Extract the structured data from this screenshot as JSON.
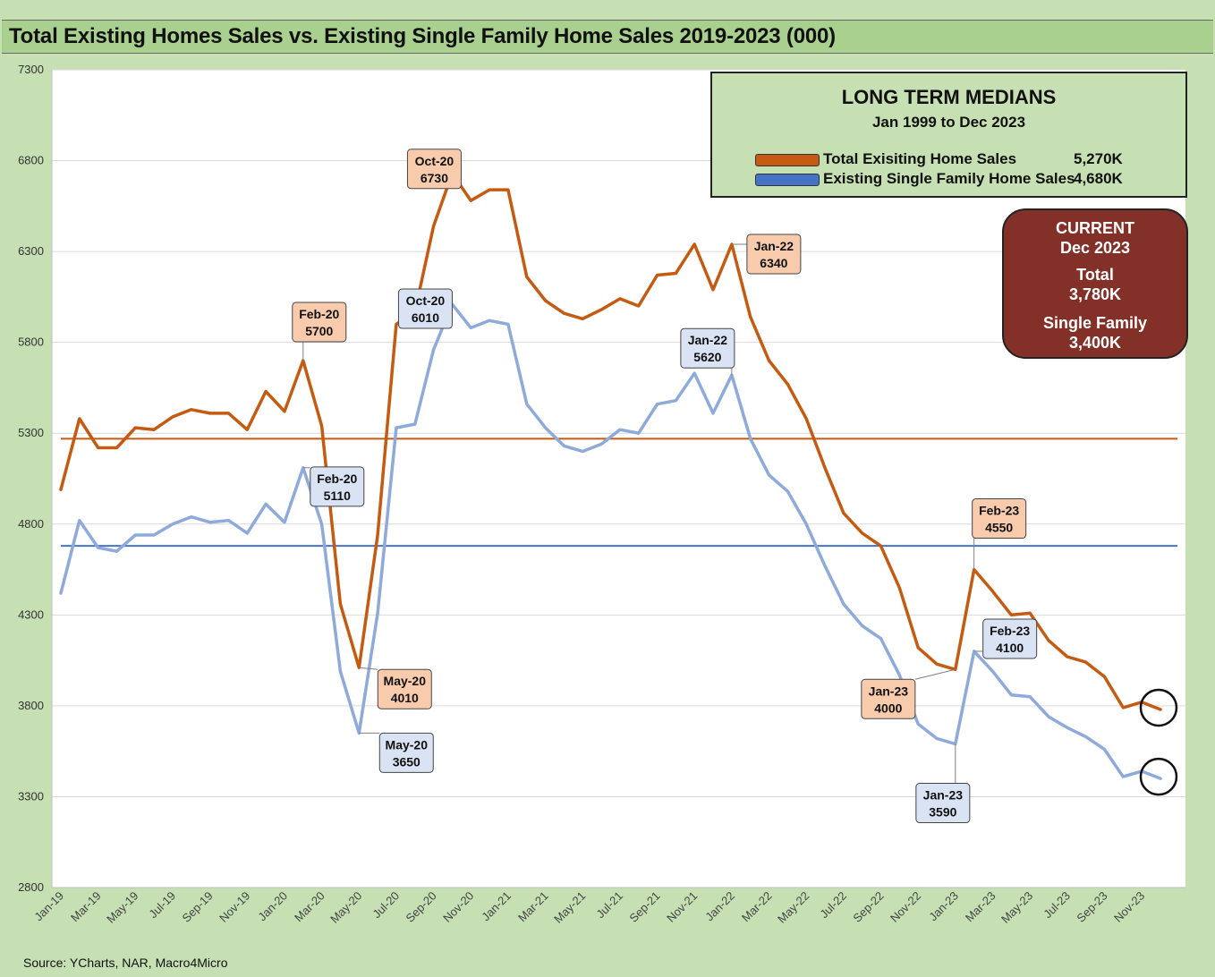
{
  "title": "Total Existing Homes Sales vs. Existing Single Family Home Sales 2019-2023 (000)",
  "source": "Source: YCharts, NAR, Macro4Micro",
  "medians_box": {
    "title": "LONG TERM MEDIANS",
    "subtitle": "Jan 1999 to Dec 2023",
    "rows": [
      {
        "label": "Total Exisiting Home Sales",
        "value": "5,270K",
        "color": "#c55a11"
      },
      {
        "label": "Existing Single Family Home Sales",
        "value": "4,680K",
        "color": "#4472c4"
      }
    ]
  },
  "current_box": {
    "heading1": "CURRENT",
    "heading2": "Dec 2023",
    "total_label": "Total",
    "total_value": "3,780K",
    "sf_label": "Single Family",
    "sf_value": "3,400K"
  },
  "colors": {
    "total_line": "#c55a11",
    "sf_line": "#8eaadb",
    "total_callout_fill": "#f8cbad",
    "sf_callout_fill": "#dae3f3",
    "median_total": "#c55a11",
    "median_sf": "#4472c4"
  },
  "chart_data": {
    "type": "line",
    "ylim": [
      2800,
      7300
    ],
    "yticks": [
      2800,
      3300,
      3800,
      4300,
      4800,
      5300,
      5800,
      6300,
      6800,
      7300
    ],
    "grid": true,
    "x_tick_labels": [
      "Jan-19",
      "Mar-19",
      "May-19",
      "Jul-19",
      "Sep-19",
      "Nov-19",
      "Jan-20",
      "Mar-20",
      "May-20",
      "Jul-20",
      "Sep-20",
      "Nov-20",
      "Jan-21",
      "Mar-21",
      "May-21",
      "Jul-21",
      "Sep-21",
      "Nov-21",
      "Jan-22",
      "Mar-22",
      "May-22",
      "Jul-22",
      "Sep-22",
      "Nov-22",
      "Jan-23",
      "Mar-23",
      "May-23",
      "Jul-23",
      "Sep-23",
      "Nov-23"
    ],
    "x": [
      "Jan-19",
      "Feb-19",
      "Mar-19",
      "Apr-19",
      "May-19",
      "Jun-19",
      "Jul-19",
      "Aug-19",
      "Sep-19",
      "Oct-19",
      "Nov-19",
      "Dec-19",
      "Jan-20",
      "Feb-20",
      "Mar-20",
      "Apr-20",
      "May-20",
      "Jun-20",
      "Jul-20",
      "Aug-20",
      "Sep-20",
      "Oct-20",
      "Nov-20",
      "Dec-20",
      "Jan-21",
      "Feb-21",
      "Mar-21",
      "Apr-21",
      "May-21",
      "Jun-21",
      "Jul-21",
      "Aug-21",
      "Sep-21",
      "Oct-21",
      "Nov-21",
      "Dec-21",
      "Jan-22",
      "Feb-22",
      "Mar-22",
      "Apr-22",
      "May-22",
      "Jun-22",
      "Jul-22",
      "Aug-22",
      "Sep-22",
      "Oct-22",
      "Nov-22",
      "Dec-22",
      "Jan-23",
      "Feb-23",
      "Mar-23",
      "Apr-23",
      "May-23",
      "Jun-23",
      "Jul-23",
      "Aug-23",
      "Sep-23",
      "Oct-23",
      "Nov-23",
      "Dec-23"
    ],
    "series": [
      {
        "name": "Total Exisiting Home Sales",
        "values": [
          4990,
          5380,
          5220,
          5220,
          5330,
          5320,
          5390,
          5430,
          5410,
          5410,
          5320,
          5530,
          5420,
          5700,
          5340,
          4360,
          4010,
          4740,
          5900,
          5970,
          6440,
          6730,
          6580,
          6640,
          6640,
          6160,
          6030,
          5960,
          5930,
          5980,
          6040,
          6000,
          6170,
          6180,
          6340,
          6090,
          6340,
          5940,
          5700,
          5570,
          5380,
          5110,
          4860,
          4750,
          4680,
          4450,
          4120,
          4030,
          4000,
          4550,
          4430,
          4300,
          4310,
          4160,
          4070,
          4040,
          3960,
          3790,
          3820,
          3780
        ]
      },
      {
        "name": "Existing Single Family Home Sales",
        "values": [
          4420,
          4820,
          4670,
          4650,
          4740,
          4740,
          4800,
          4840,
          4810,
          4820,
          4750,
          4910,
          4810,
          5110,
          4800,
          3990,
          3650,
          4310,
          5330,
          5350,
          5760,
          6010,
          5880,
          5920,
          5900,
          5460,
          5330,
          5230,
          5200,
          5240,
          5320,
          5300,
          5460,
          5480,
          5630,
          5410,
          5620,
          5270,
          5070,
          4980,
          4800,
          4570,
          4360,
          4240,
          4170,
          3970,
          3700,
          3620,
          3590,
          4100,
          3990,
          3860,
          3850,
          3740,
          3680,
          3630,
          3560,
          3410,
          3440,
          3400
        ]
      }
    ],
    "medians": [
      {
        "name": "Total Exisiting Home Sales",
        "value": 5270
      },
      {
        "name": "Existing Single Family Home Sales",
        "value": 4680
      }
    ],
    "annotations": [
      {
        "series": 0,
        "index": 13,
        "label1": "Feb-20",
        "label2": "5700"
      },
      {
        "series": 1,
        "index": 13,
        "label1": "Feb-20",
        "label2": "5110"
      },
      {
        "series": 0,
        "index": 21,
        "label1": "Oct-20",
        "label2": "6730"
      },
      {
        "series": 1,
        "index": 21,
        "label1": "Oct-20",
        "label2": "6010"
      },
      {
        "series": 0,
        "index": 16,
        "label1": "May-20",
        "label2": "4010"
      },
      {
        "series": 1,
        "index": 16,
        "label1": "May-20",
        "label2": "3650"
      },
      {
        "series": 0,
        "index": 36,
        "label1": "Jan-22",
        "label2": "6340"
      },
      {
        "series": 1,
        "index": 36,
        "label1": "Jan-22",
        "label2": "5620"
      },
      {
        "series": 0,
        "index": 49,
        "label1": "Feb-23",
        "label2": "4550"
      },
      {
        "series": 1,
        "index": 49,
        "label1": "Feb-23",
        "label2": "4100"
      },
      {
        "series": 0,
        "index": 48,
        "label1": "Jan-23",
        "label2": "4000"
      },
      {
        "series": 1,
        "index": 48,
        "label1": "Jan-23",
        "label2": "3590"
      }
    ]
  }
}
